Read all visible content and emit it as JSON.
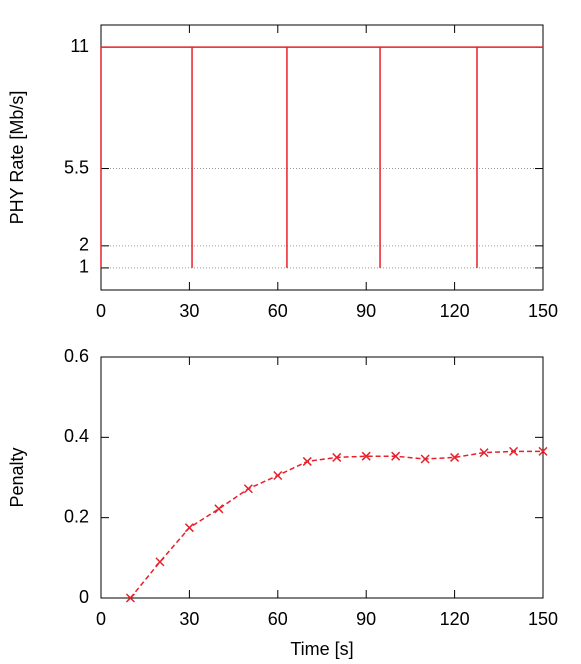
{
  "chart_data": [
    {
      "type": "line",
      "ylabel": "PHY Rate [Mb/s]",
      "x": [
        0,
        0,
        30.9,
        30.9,
        30.9,
        63.1,
        63.1,
        63.1,
        94.7,
        94.7,
        94.7,
        127.6,
        127.6,
        127.6,
        150
      ],
      "series": [
        {
          "color": "#e8202a",
          "values": [
            1,
            11,
            11,
            1,
            11,
            11,
            1,
            11,
            11,
            1,
            11,
            11,
            1,
            11,
            11
          ]
        }
      ],
      "xlim": [
        0,
        150
      ],
      "xticks": [
        0,
        30,
        60,
        90,
        120,
        150
      ],
      "ylim": [
        0,
        12
      ],
      "yticks": [
        1,
        2,
        5.5,
        11
      ],
      "grid": true,
      "linestyle": "solid",
      "marker": "none"
    },
    {
      "type": "line",
      "ylabel": "Penalty",
      "xlabel": "Time [s]",
      "x": [
        10,
        20,
        30,
        40,
        50,
        60,
        70,
        80,
        90,
        100,
        110,
        120,
        130,
        140,
        150
      ],
      "series": [
        {
          "color": "#e8202a",
          "values": [
            0,
            0.09,
            0.175,
            0.222,
            0.272,
            0.305,
            0.34,
            0.35,
            0.353,
            0.353,
            0.346,
            0.35,
            0.362,
            0.365,
            0.365
          ]
        }
      ],
      "xlim": [
        0,
        150
      ],
      "xticks": [
        0,
        30,
        60,
        90,
        120,
        150
      ],
      "ylim": [
        0,
        0.6
      ],
      "yticks": [
        0,
        0.2,
        0.4,
        0.6
      ],
      "grid": false,
      "linestyle": "dashed",
      "marker": "x"
    }
  ]
}
